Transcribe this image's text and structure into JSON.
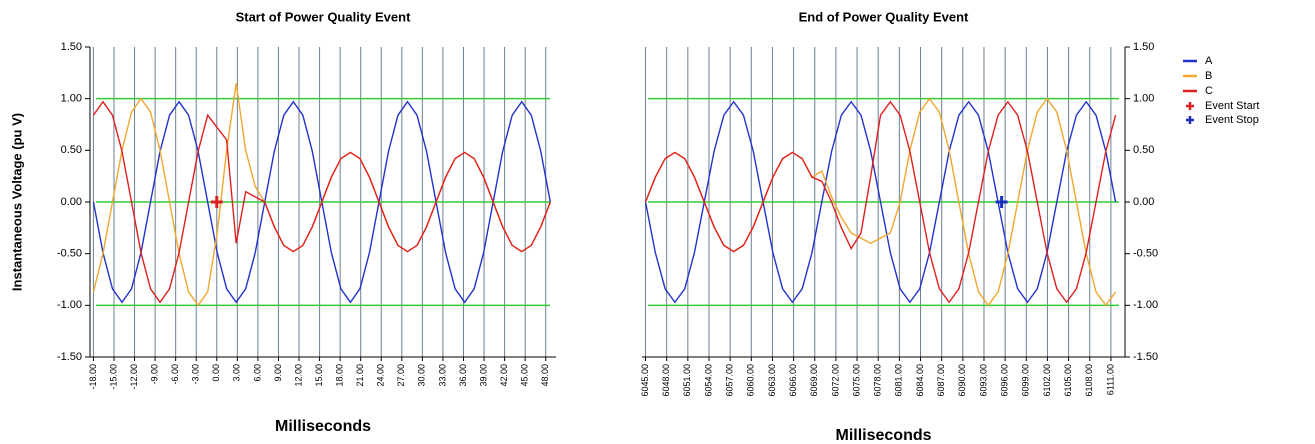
{
  "chart_data": [
    {
      "type": "line",
      "title": "Start of Power Quality Event",
      "x_label": "Milliseconds",
      "y_label": "Instantaneous Voltage (pu V)",
      "y_axis_side": "left",
      "xlim": [
        -18.5,
        49.5
      ],
      "ylim": [
        -1.5,
        1.5
      ],
      "xticks": [
        {
          "value": -18,
          "label": "-18.00"
        },
        {
          "value": -15,
          "label": "-15.00"
        },
        {
          "value": -12,
          "label": "-12.00"
        },
        {
          "value": -9,
          "label": "-9.00"
        },
        {
          "value": -6,
          "label": "-6.00"
        },
        {
          "value": -3,
          "label": "-3.00"
        },
        {
          "value": 0,
          "label": "0.00"
        },
        {
          "value": 3,
          "label": "3.00"
        },
        {
          "value": 6,
          "label": "6.00"
        },
        {
          "value": 9,
          "label": "9.00"
        },
        {
          "value": 12,
          "label": "12.00"
        },
        {
          "value": 15,
          "label": "15.00"
        },
        {
          "value": 18,
          "label": "18.00"
        },
        {
          "value": 21,
          "label": "21.00"
        },
        {
          "value": 24,
          "label": "24.00"
        },
        {
          "value": 27,
          "label": "27.00"
        },
        {
          "value": 30,
          "label": "30.00"
        },
        {
          "value": 33,
          "label": "33.00"
        },
        {
          "value": 36,
          "label": "36.00"
        },
        {
          "value": 39,
          "label": "39.00"
        },
        {
          "value": 42,
          "label": "42.00"
        },
        {
          "value": 45,
          "label": "45.00"
        },
        {
          "value": 48,
          "label": "48.00"
        }
      ],
      "yticks": [
        {
          "value": 1.5,
          "label": "1.50"
        },
        {
          "value": 1,
          "label": "1.00"
        },
        {
          "value": 0.5,
          "label": "0.50"
        },
        {
          "value": 0,
          "label": "0.00"
        },
        {
          "value": -0.5,
          "label": "-0.50"
        },
        {
          "value": -1,
          "label": "-1.00"
        },
        {
          "value": -1.5,
          "label": "-1.50"
        }
      ],
      "xgrid": true,
      "xgrid_color": "#6f7f93",
      "reference_lines": {
        "values": [
          1,
          0,
          -1
        ],
        "color": "#33cc33"
      },
      "x": [
        -18,
        -16.61,
        -15.22,
        -13.83,
        -12.44,
        -11.06,
        -9.67,
        -8.28,
        -6.89,
        -5.5,
        -4.11,
        -2.72,
        -1.33,
        0.06,
        1.44,
        2.83,
        4.22,
        5.61,
        7,
        8.39,
        9.78,
        11.17,
        12.56,
        13.94,
        15.33,
        16.72,
        18.11,
        19.5,
        20.89,
        22.28,
        23.67,
        25.06,
        26.44,
        27.83,
        29.22,
        30.61,
        32,
        33.39,
        34.78,
        36.17,
        37.56,
        38.94,
        40.33,
        41.72,
        43.11,
        44.5,
        45.89,
        47.28,
        48.67
      ],
      "series": [
        {
          "name": "A",
          "color": "#2233cc",
          "values": [
            0,
            -0.49,
            -0.84,
            -0.97,
            -0.84,
            -0.49,
            0,
            0.49,
            0.84,
            0.97,
            0.84,
            0.49,
            0,
            -0.49,
            -0.84,
            -0.97,
            -0.84,
            -0.49,
            0,
            0.49,
            0.84,
            0.97,
            0.84,
            0.49,
            0,
            -0.49,
            -0.84,
            -0.97,
            -0.84,
            -0.49,
            0,
            0.49,
            0.84,
            0.97,
            0.84,
            0.49,
            0,
            -0.49,
            -0.84,
            -0.97,
            -0.84,
            -0.49,
            0,
            0.49,
            0.84,
            0.97,
            0.84,
            0.49,
            0
          ]
        },
        {
          "name": "B",
          "color": "#f0a830",
          "values": [
            -0.87,
            -0.5,
            0,
            0.5,
            0.87,
            1,
            0.87,
            0.5,
            0,
            -0.5,
            -0.87,
            -1,
            -0.87,
            -0.3,
            0.5,
            1.15,
            0.5,
            0.15,
            0,
            -0.24,
            -0.42,
            -0.48,
            -0.42,
            -0.24,
            0,
            0.24,
            0.42,
            0.48,
            0.42,
            0.24,
            0,
            -0.24,
            -0.42,
            -0.48,
            -0.42,
            -0.24,
            0,
            0.24,
            0.42,
            0.48,
            0.42,
            0.24,
            0,
            -0.24,
            -0.42,
            -0.48,
            -0.42,
            -0.24,
            0
          ]
        },
        {
          "name": "C",
          "color": "#e02020",
          "values": [
            0.84,
            0.97,
            0.84,
            0.49,
            0,
            -0.49,
            -0.84,
            -0.97,
            -0.84,
            -0.49,
            0,
            0.49,
            0.84,
            0.72,
            0.6,
            -0.4,
            0.1,
            0.05,
            0,
            -0.24,
            -0.42,
            -0.48,
            -0.42,
            -0.24,
            0,
            0.24,
            0.42,
            0.48,
            0.42,
            0.24,
            0,
            -0.24,
            -0.42,
            -0.48,
            -0.42,
            -0.24,
            0,
            0.24,
            0.42,
            0.48,
            0.42,
            0.24,
            0,
            -0.24,
            -0.42,
            -0.48,
            -0.42,
            -0.24,
            0
          ]
        }
      ],
      "markers": [
        {
          "name": "Event Start",
          "color": "#e02020",
          "x": 0,
          "y": 0
        }
      ]
    },
    {
      "type": "line",
      "title": "End of Power Quality Event",
      "x_label": "Milliseconds",
      "y_axis_side": "right",
      "xlim": [
        6044.5,
        6113
      ],
      "ylim": [
        -1.5,
        1.5
      ],
      "xticks": [
        {
          "value": 6045,
          "label": "6045.00"
        },
        {
          "value": 6048,
          "label": "6048.00"
        },
        {
          "value": 6051,
          "label": "6051.00"
        },
        {
          "value": 6054,
          "label": "6054.00"
        },
        {
          "value": 6057,
          "label": "6057.00"
        },
        {
          "value": 6060,
          "label": "6060.00"
        },
        {
          "value": 6063,
          "label": "6063.00"
        },
        {
          "value": 6066,
          "label": "6066.00"
        },
        {
          "value": 6069,
          "label": "6069.00"
        },
        {
          "value": 6072,
          "label": "6072.00"
        },
        {
          "value": 6075,
          "label": "6075.00"
        },
        {
          "value": 6078,
          "label": "6078.00"
        },
        {
          "value": 6081,
          "label": "6081.00"
        },
        {
          "value": 6084,
          "label": "6084.00"
        },
        {
          "value": 6087,
          "label": "6087.00"
        },
        {
          "value": 6090,
          "label": "6090.00"
        },
        {
          "value": 6093,
          "label": "6093.00"
        },
        {
          "value": 6096,
          "label": "6096.00"
        },
        {
          "value": 6099,
          "label": "6099.00"
        },
        {
          "value": 6102,
          "label": "6102.00"
        },
        {
          "value": 6105,
          "label": "6105.00"
        },
        {
          "value": 6108,
          "label": "6108.00"
        },
        {
          "value": 6111,
          "label": "6111.00"
        }
      ],
      "yticks": [
        {
          "value": 1.5,
          "label": "1.50"
        },
        {
          "value": 1,
          "label": "1.00"
        },
        {
          "value": 0.5,
          "label": "0.50"
        },
        {
          "value": 0,
          "label": "0.00"
        },
        {
          "value": -0.5,
          "label": "-0.50"
        },
        {
          "value": -1,
          "label": "-1.00"
        },
        {
          "value": -1.5,
          "label": "-1.50"
        }
      ],
      "xgrid": true,
      "xgrid_color": "#6f7f93",
      "reference_lines": {
        "values": [
          1,
          0,
          -1
        ],
        "color": "#33cc33"
      },
      "x": [
        6045,
        6046.39,
        6047.78,
        6049.17,
        6050.56,
        6051.94,
        6053.33,
        6054.72,
        6056.11,
        6057.5,
        6058.89,
        6060.28,
        6061.67,
        6063.06,
        6064.44,
        6065.83,
        6067.22,
        6068.61,
        6070,
        6071.39,
        6072.78,
        6074.17,
        6075.56,
        6076.94,
        6078.33,
        6079.72,
        6081.11,
        6082.5,
        6083.89,
        6085.28,
        6086.67,
        6088.06,
        6089.44,
        6090.83,
        6092.22,
        6093.61,
        6095,
        6096.39,
        6097.78,
        6099.17,
        6100.56,
        6101.94,
        6103.33,
        6104.72,
        6106.11,
        6107.5,
        6108.89,
        6110.28,
        6111.67
      ],
      "series": [
        {
          "name": "A",
          "color": "#2233cc",
          "values": [
            0,
            -0.49,
            -0.84,
            -0.97,
            -0.84,
            -0.49,
            0,
            0.49,
            0.84,
            0.97,
            0.84,
            0.49,
            0,
            -0.49,
            -0.84,
            -0.97,
            -0.84,
            -0.49,
            0,
            0.49,
            0.84,
            0.97,
            0.84,
            0.49,
            0,
            -0.49,
            -0.84,
            -0.97,
            -0.84,
            -0.49,
            0,
            0.49,
            0.84,
            0.97,
            0.84,
            0.49,
            0,
            -0.49,
            -0.84,
            -0.97,
            -0.84,
            -0.49,
            0,
            0.49,
            0.84,
            0.97,
            0.84,
            0.49,
            0
          ]
        },
        {
          "name": "B",
          "color": "#f0a830",
          "values": [
            0,
            0.24,
            0.42,
            0.48,
            0.42,
            0.24,
            0,
            -0.24,
            -0.42,
            -0.48,
            -0.42,
            -0.24,
            0,
            0.24,
            0.42,
            0.48,
            0.42,
            0.24,
            0.3,
            0.05,
            -0.15,
            -0.3,
            -0.35,
            -0.4,
            -0.35,
            -0.3,
            0,
            0.5,
            0.87,
            1,
            0.87,
            0.5,
            0,
            -0.5,
            -0.87,
            -1,
            -0.87,
            -0.5,
            0,
            0.5,
            0.87,
            1,
            0.87,
            0.5,
            0,
            -0.5,
            -0.87,
            -1,
            -0.87
          ]
        },
        {
          "name": "C",
          "color": "#e02020",
          "values": [
            0,
            0.24,
            0.42,
            0.48,
            0.42,
            0.24,
            0,
            -0.24,
            -0.42,
            -0.48,
            -0.42,
            -0.24,
            0,
            0.24,
            0.42,
            0.48,
            0.42,
            0.24,
            0.2,
            0,
            -0.25,
            -0.45,
            -0.3,
            0.25,
            0.84,
            0.97,
            0.84,
            0.49,
            0,
            -0.49,
            -0.84,
            -0.97,
            -0.84,
            -0.49,
            0,
            0.49,
            0.84,
            0.97,
            0.84,
            0.49,
            0,
            -0.49,
            -0.84,
            -0.97,
            -0.84,
            -0.49,
            0,
            0.49,
            0.84
          ]
        }
      ],
      "markers": [
        {
          "name": "Event Stop",
          "color": "#1a2fc0",
          "x": 6095.5,
          "y": 0
        }
      ]
    }
  ]
}
